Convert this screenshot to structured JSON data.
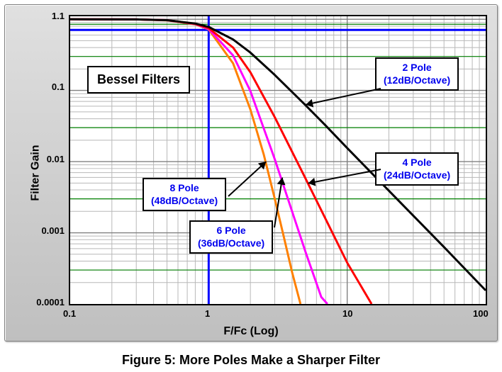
{
  "caption": "Figure 5: More Poles Make a Sharper Filter",
  "axes": {
    "x_label": "F/Fc (Log)",
    "y_label": "Filter Gain",
    "xlim": [
      0.1,
      100
    ],
    "ylim": [
      0.0001,
      1.1
    ],
    "xscale": "log",
    "yscale": "log",
    "x_ticks": [
      0.1,
      1,
      10,
      100
    ],
    "x_tick_labels": [
      "0.1",
      "1",
      "10",
      "100"
    ],
    "y_ticks": [
      0.0001,
      0.001,
      0.01,
      0.1,
      1.1
    ],
    "y_tick_labels": [
      "0.0001",
      "0.001",
      "0.01",
      "0.1",
      "1.1"
    ],
    "background_color": "#ffffff",
    "frame_color": "#000000",
    "frame_width": 2,
    "major_grid_color": "#808080",
    "minor_grid_color": "#b8b8b8",
    "green_lines_y": [
      0.0003,
      0.003,
      0.03,
      0.3,
      0.85
    ],
    "green_line_color": "#008000",
    "font_size_ticks": 13,
    "font_size_labels": 16,
    "font_weight": "bold"
  },
  "reference_lines": {
    "vertical_x": 1.0,
    "horizontal_y": 0.707,
    "color": "#0000ff",
    "width": 3
  },
  "series": [
    {
      "name": "2 Pole",
      "color": "#000000",
      "width": 3,
      "points": [
        [
          0.1,
          1.0
        ],
        [
          0.3,
          0.995
        ],
        [
          0.5,
          0.97
        ],
        [
          0.8,
          0.87
        ],
        [
          1.0,
          0.78
        ],
        [
          1.5,
          0.52
        ],
        [
          2.0,
          0.34
        ],
        [
          3.0,
          0.165
        ],
        [
          5.0,
          0.062
        ],
        [
          7.0,
          0.032
        ],
        [
          10.0,
          0.0155
        ],
        [
          20.0,
          0.0039
        ],
        [
          50.0,
          0.00063
        ],
        [
          100.0,
          0.000155
        ]
      ]
    },
    {
      "name": "4 Pole",
      "color": "#ff0000",
      "width": 3,
      "points": [
        [
          0.1,
          1.0
        ],
        [
          0.3,
          0.995
        ],
        [
          0.5,
          0.97
        ],
        [
          0.8,
          0.86
        ],
        [
          1.0,
          0.75
        ],
        [
          1.5,
          0.4
        ],
        [
          2.0,
          0.18
        ],
        [
          3.0,
          0.042
        ],
        [
          5.0,
          0.0058
        ],
        [
          7.0,
          0.00155
        ],
        [
          10.0,
          0.00038
        ],
        [
          15.0,
          0.0001
        ]
      ]
    },
    {
      "name": "6 Pole",
      "color": "#ff00ff",
      "width": 3,
      "points": [
        [
          0.1,
          1.0
        ],
        [
          0.3,
          0.995
        ],
        [
          0.5,
          0.97
        ],
        [
          0.8,
          0.855
        ],
        [
          1.0,
          0.73
        ],
        [
          1.5,
          0.31
        ],
        [
          2.0,
          0.098
        ],
        [
          3.0,
          0.0108
        ],
        [
          4.0,
          0.002
        ],
        [
          5.0,
          0.00054
        ],
        [
          6.5,
          0.000125
        ],
        [
          7.2,
          0.0001
        ]
      ]
    },
    {
      "name": "8 Pole",
      "color": "#ff8000",
      "width": 3,
      "points": [
        [
          0.1,
          1.0
        ],
        [
          0.3,
          0.995
        ],
        [
          0.5,
          0.965
        ],
        [
          0.8,
          0.85
        ],
        [
          1.0,
          0.72
        ],
        [
          1.5,
          0.24
        ],
        [
          2.0,
          0.054
        ],
        [
          2.5,
          0.0125
        ],
        [
          3.0,
          0.003
        ],
        [
          3.5,
          0.00085
        ],
        [
          4.0,
          0.00028
        ],
        [
          4.6,
          0.0001
        ]
      ]
    }
  ],
  "annotations": {
    "title_box": {
      "text": "Bessel Filters",
      "color": "#000000",
      "font_size": 18
    },
    "callouts": [
      {
        "id": "p2",
        "line1": "2 Pole",
        "line2": "(12dB/Octave)"
      },
      {
        "id": "p4",
        "line1": "4 Pole",
        "line2": "(24dB/Octave)"
      },
      {
        "id": "p6",
        "line1": "6 Pole",
        "line2": "(36dB/Octave)"
      },
      {
        "id": "p8",
        "line1": "8 Pole",
        "line2": "(48dB/Octave)"
      }
    ],
    "arrow_color": "#000000",
    "arrow_width": 2,
    "box_border": "#000000",
    "box_bg": "#ffffff",
    "text_color": "#0000ee"
  },
  "panel_bg_gradient": [
    "#e0e0e0",
    "#bfbfbf"
  ]
}
